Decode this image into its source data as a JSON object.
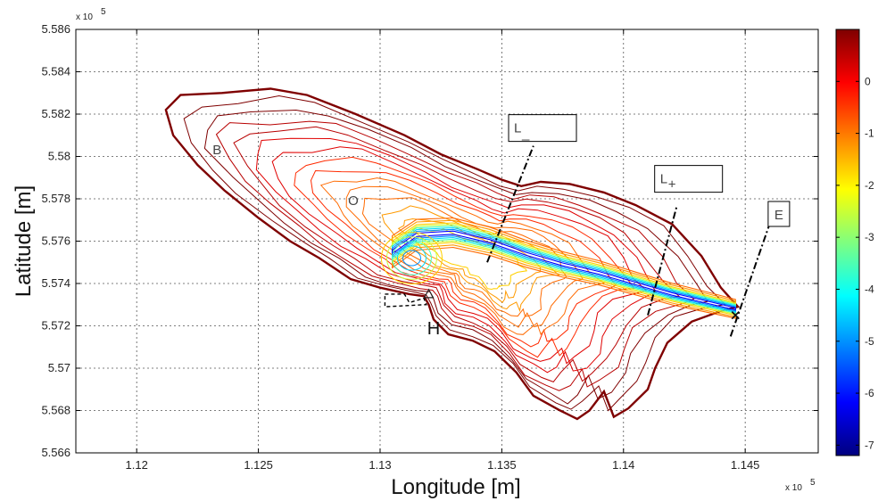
{
  "chart_data": {
    "type": "contour",
    "xlabel": "Longitude [m]",
    "ylabel": "Latitude [m]",
    "x_exponent": "x 10",
    "x_exponent_power": "5",
    "y_exponent": "x 10",
    "y_exponent_power": "5",
    "xlim": [
      1.1175,
      1.148
    ],
    "ylim": [
      5.566,
      5.586
    ],
    "x_ticks": [
      1.12,
      1.125,
      1.13,
      1.135,
      1.14,
      1.145
    ],
    "x_tick_labels": [
      "1.12",
      "1.125",
      "1.13",
      "1.135",
      "1.14",
      "1.145"
    ],
    "y_ticks": [
      5.566,
      5.568,
      5.57,
      5.572,
      5.574,
      5.576,
      5.578,
      5.58,
      5.582,
      5.584,
      5.586
    ],
    "y_tick_labels": [
      "5.566",
      "5.568",
      "5.57",
      "5.572",
      "5.574",
      "5.576",
      "5.578",
      "5.58",
      "5.582",
      "5.584",
      "5.586"
    ],
    "grid": true,
    "colorbar": {
      "colors": [
        "#00007f",
        "#0000ff",
        "#007fff",
        "#00ffff",
        "#7fff7f",
        "#ffff00",
        "#ff7f00",
        "#ff0000",
        "#7f0000"
      ],
      "range": [
        -7.2,
        1.0
      ],
      "ticks": [
        0,
        -1,
        -2,
        -3,
        -4,
        -5,
        -6,
        -7
      ],
      "tick_labels": [
        "0",
        "-1",
        "-2",
        "-3",
        "-4",
        "-5",
        "-6",
        "-7"
      ]
    },
    "annotations": [
      {
        "text": "B",
        "x": 1.1233,
        "y": 5.5801
      },
      {
        "text": "O",
        "x": 1.1289,
        "y": 5.5777
      },
      {
        "text": "H",
        "x": 1.1322,
        "y": 5.5716
      },
      {
        "text": "L",
        "subscript": "_",
        "x": 1.1355,
        "y": 5.5813
      },
      {
        "text": "L",
        "subscript": "+",
        "x": 1.1415,
        "y": 5.5789
      },
      {
        "text": "E",
        "x": 1.1462,
        "y": 5.5772
      }
    ],
    "markers": [
      {
        "symbol": "triangle",
        "x": 1.132,
        "y": 5.5735
      },
      {
        "symbol": "x",
        "x": 1.1446,
        "y": 5.5725
      }
    ],
    "transects": [
      {
        "name": "L_",
        "from": [
          1.1344,
          5.575
        ],
        "to": [
          1.1363,
          5.5805
        ]
      },
      {
        "name": "L+",
        "from": [
          1.141,
          5.5725
        ],
        "to": [
          1.1422,
          5.5777
        ]
      },
      {
        "name": "E",
        "from": [
          1.1444,
          5.5715
        ],
        "to": [
          1.146,
          5.5768
        ]
      }
    ],
    "contour_colors": [
      "#7f0000",
      "#b80000",
      "#e00000",
      "#ff2a00",
      "#ff6a00",
      "#ff9a00",
      "#ffd000",
      "#c8ff38",
      "#40ffbe",
      "#00d8ff",
      "#0090ff",
      "#0000ff"
    ],
    "outer_outline": [
      [
        1.1212,
        5.5822
      ],
      [
        1.1218,
        5.5829
      ],
      [
        1.1235,
        5.583
      ],
      [
        1.1255,
        5.5832
      ],
      [
        1.127,
        5.5829
      ],
      [
        1.129,
        5.582
      ],
      [
        1.131,
        5.581
      ],
      [
        1.1325,
        5.5801
      ],
      [
        1.134,
        5.5794
      ],
      [
        1.135,
        5.5789
      ],
      [
        1.1358,
        5.5786
      ],
      [
        1.1366,
        5.5788
      ],
      [
        1.1378,
        5.5787
      ],
      [
        1.1392,
        5.5783
      ],
      [
        1.1405,
        5.5777
      ],
      [
        1.142,
        5.5768
      ],
      [
        1.1432,
        5.5753
      ],
      [
        1.144,
        5.5738
      ],
      [
        1.1447,
        5.5729
      ],
      [
        1.144,
        5.5727
      ],
      [
        1.1428,
        5.5722
      ],
      [
        1.1418,
        5.5712
      ],
      [
        1.1413,
        5.57
      ],
      [
        1.141,
        5.569
      ],
      [
        1.1402,
        5.5681
      ],
      [
        1.1396,
        5.5677
      ],
      [
        1.1392,
        5.5689
      ],
      [
        1.1386,
        5.568
      ],
      [
        1.1381,
        5.5676
      ],
      [
        1.1374,
        5.568
      ],
      [
        1.1363,
        5.5687
      ],
      [
        1.1356,
        5.5698
      ],
      [
        1.1347,
        5.5708
      ],
      [
        1.1338,
        5.5713
      ],
      [
        1.1328,
        5.5716
      ],
      [
        1.1322,
        5.5723
      ],
      [
        1.132,
        5.573
      ],
      [
        1.1318,
        5.5734
      ],
      [
        1.1312,
        5.5735
      ],
      [
        1.13,
        5.5738
      ],
      [
        1.1288,
        5.5742
      ],
      [
        1.1275,
        5.5752
      ],
      [
        1.1263,
        5.576
      ],
      [
        1.125,
        5.5771
      ],
      [
        1.1236,
        5.5784
      ],
      [
        1.1225,
        5.5796
      ],
      [
        1.1215,
        5.581
      ]
    ],
    "channel_centerline": [
      [
        1.1305,
        5.5755
      ],
      [
        1.1315,
        5.5763
      ],
      [
        1.133,
        5.5764
      ],
      [
        1.1345,
        5.576
      ],
      [
        1.136,
        5.5754
      ],
      [
        1.1375,
        5.5749
      ],
      [
        1.139,
        5.5745
      ],
      [
        1.1405,
        5.574
      ],
      [
        1.142,
        5.5735
      ],
      [
        1.1435,
        5.5731
      ],
      [
        1.1446,
        5.5728
      ]
    ]
  }
}
